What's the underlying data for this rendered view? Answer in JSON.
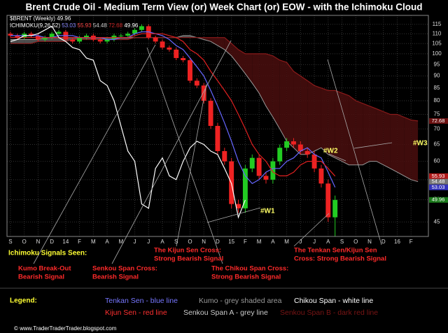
{
  "chart_data": {
    "type": "candlestick",
    "title": "Brent Crude Oil - Medium Term View (or) Week Chart (or) EOW - with the Ichimoku Cloud",
    "symbol_label": "$BRENT (Weekly)",
    "last_price": 49.96,
    "indicator_label": "ICHIMOKU(9,26,52)",
    "indicator_values": [
      53.03,
      55.93,
      54.48,
      72.68,
      49.96
    ],
    "log_scale": true,
    "grid": true,
    "ylim": [
      42,
      120
    ],
    "yticks": [
      45,
      50,
      55,
      60,
      65,
      70,
      75,
      80,
      85,
      90,
      95,
      100,
      105,
      110,
      115
    ],
    "categories": [
      "S",
      null,
      "O",
      null,
      "N",
      null,
      "D",
      null,
      "14",
      null,
      "F",
      null,
      "M",
      null,
      "A",
      null,
      "M",
      null,
      "J",
      null,
      "J",
      null,
      "A",
      null,
      "S",
      null,
      "O",
      null,
      "N",
      null,
      "D",
      null,
      "15",
      null,
      "F",
      null,
      "M",
      null,
      "A",
      null,
      "M",
      null,
      "J",
      null,
      "J",
      null,
      "A",
      null,
      "S",
      null,
      "O",
      null,
      "N",
      null,
      "D",
      null,
      "16",
      null,
      "F",
      null
    ],
    "up_color": "#22cc22",
    "down_color": "#ee2222",
    "open": [
      110,
      109,
      108,
      110,
      109,
      107,
      108,
      110,
      111,
      107,
      106,
      108,
      109,
      107,
      106,
      107,
      109,
      109,
      110,
      112,
      114,
      108,
      106,
      103,
      102,
      98,
      97,
      88,
      86,
      80,
      71,
      63,
      60,
      49,
      48,
      58,
      61,
      56,
      55,
      60,
      64,
      66,
      65,
      63,
      62,
      58,
      54,
      46,
      null,
      null,
      null,
      null,
      null,
      null,
      null,
      null,
      null,
      null,
      null,
      null
    ],
    "high": [
      111,
      110,
      111,
      111,
      110,
      109,
      111,
      112,
      112,
      108,
      109,
      110,
      110,
      108,
      108,
      110,
      110,
      111,
      113,
      115,
      115,
      109,
      107,
      104,
      103,
      99,
      98,
      89,
      87,
      81,
      72,
      64,
      61,
      50,
      59,
      62,
      62,
      57,
      61,
      65,
      67,
      67,
      66,
      64,
      63,
      59,
      55,
      51,
      null,
      null,
      null,
      null,
      null,
      null,
      null,
      null,
      null,
      null,
      null,
      null
    ],
    "low": [
      108,
      107,
      107,
      108,
      106,
      106,
      107,
      109,
      106,
      105,
      105,
      107,
      106,
      105,
      105,
      106,
      108,
      108,
      109,
      111,
      107,
      105,
      102,
      101,
      97,
      96,
      87,
      85,
      79,
      70,
      62,
      59,
      48,
      47,
      47,
      57,
      55,
      54,
      54,
      59,
      63,
      64,
      62,
      61,
      57,
      53,
      45,
      42,
      null,
      null,
      null,
      null,
      null,
      null,
      null,
      null,
      null,
      null,
      null,
      null
    ],
    "close": [
      109,
      108,
      110,
      109,
      107,
      108,
      110,
      111,
      107,
      106,
      108,
      109,
      107,
      106,
      107,
      109,
      109,
      110,
      112,
      114,
      108,
      106,
      103,
      102,
      98,
      97,
      88,
      86,
      80,
      71,
      63,
      60,
      49,
      48,
      58,
      61,
      56,
      55,
      60,
      64,
      66,
      65,
      63,
      62,
      58,
      54,
      46,
      49.96,
      null,
      null,
      null,
      null,
      null,
      null,
      null,
      null,
      null,
      null,
      null,
      null
    ],
    "cloud": {
      "fill_a": "#5a5a5a",
      "fill_b": "#4a0e0e",
      "span_a": {
        "color": "#9a9a9a",
        "values": [
          107,
          107,
          107,
          107,
          107,
          108,
          108,
          108,
          108,
          108,
          108,
          108,
          108,
          108,
          108,
          108,
          108,
          108,
          108,
          108,
          108,
          108,
          108,
          108,
          108,
          109,
          109,
          108,
          107,
          106,
          104,
          102,
          99,
          95,
          91,
          87,
          83,
          78,
          74,
          70,
          66,
          64,
          62,
          62,
          63,
          64,
          62,
          61,
          60,
          59,
          59,
          59,
          60,
          60,
          59,
          58,
          57,
          56,
          55,
          54.48
        ]
      },
      "span_b": {
        "color": "#8b1a1a",
        "values": [
          105,
          105,
          105,
          105,
          106,
          106,
          106,
          106,
          106,
          107,
          107,
          107,
          107,
          107,
          107,
          107,
          107,
          107,
          108,
          108,
          108,
          108,
          108,
          108,
          108,
          108,
          108,
          108,
          108,
          108,
          108,
          108,
          105,
          102,
          100,
          100,
          100,
          100,
          99,
          97,
          96,
          92,
          90,
          88,
          86,
          85,
          84,
          84,
          83,
          82,
          80,
          79,
          78,
          77,
          76,
          75,
          75,
          74,
          73,
          72.68
        ]
      }
    },
    "lines": [
      {
        "color": "#6666ff",
        "values": [
          109,
          109,
          109,
          109,
          109,
          108,
          108,
          109,
          109,
          109,
          108,
          108,
          108,
          108,
          107,
          107,
          108,
          108,
          110,
          111,
          111,
          110,
          109,
          107,
          104,
          102,
          98,
          94,
          90,
          84,
          78,
          72,
          66,
          60,
          56,
          54,
          55,
          57,
          58,
          58,
          60,
          61,
          63,
          64,
          62,
          61,
          57,
          53.03,
          null,
          null,
          null,
          null,
          null,
          null,
          null,
          null,
          null,
          null,
          null,
          null
        ]
      },
      {
        "color": "#e02020",
        "values": [
          108,
          108,
          108,
          108,
          108,
          108,
          108,
          108,
          108,
          108,
          108,
          108,
          108,
          108,
          108,
          108,
          108,
          108,
          109,
          110,
          110,
          110,
          110,
          109,
          108,
          106,
          102,
          100,
          97,
          92,
          88,
          84,
          80,
          75,
          70,
          65,
          62,
          60,
          57,
          56,
          56,
          57,
          59,
          60,
          60,
          60,
          58,
          55.93,
          null,
          null,
          null,
          null,
          null,
          null,
          null,
          null,
          null,
          null,
          null,
          null
        ]
      },
      {
        "color": "#ffffff",
        "values": [
          106,
          107,
          109,
          109,
          110,
          112,
          114,
          108,
          106,
          103,
          102,
          98,
          97,
          88,
          86,
          80,
          71,
          63,
          60,
          49,
          48,
          58,
          61,
          56,
          55,
          60,
          64,
          66,
          65,
          63,
          62,
          58,
          54,
          46,
          49.96,
          null,
          null,
          null,
          null,
          null,
          null,
          null,
          null,
          null,
          null,
          null,
          null,
          null,
          null,
          null,
          null,
          null,
          null,
          null,
          null,
          null,
          null,
          null,
          null,
          null
        ]
      }
    ],
    "price_tags": [
      {
        "value": 72.68,
        "color": "#6b1010"
      },
      {
        "value": 55.93,
        "color": "#b01818"
      },
      {
        "value": 54.48,
        "color": "#777777"
      },
      {
        "value": 53.03,
        "color": "#3333bb"
      },
      {
        "value": 49.96,
        "color": "#1a7a1a"
      }
    ],
    "wave_labels": [
      "#W1",
      "#W2",
      "#W3"
    ],
    "signals_heading": "Ichimoku Signals Seen:",
    "signals": [
      [
        "Kumo Break-Out",
        "Bearish Signal"
      ],
      [
        "Senkou Span Cross:",
        "Bearish Signal"
      ],
      [
        "The Kijun Sen Cross:",
        "Strong Bearish Signal"
      ],
      [
        "The Chikou Span Cross:",
        "Strong Bearish Signal"
      ],
      [
        "The Tenkan Sen/Kijun Sen",
        "Cross: Strong Bearish Signal"
      ]
    ],
    "legend_heading": "Legend:",
    "legend": [
      "Tenkan Sen - blue line",
      "Kumo - grey shaded area",
      "Chikou Span - white line",
      "Kijun Sen - red line",
      "Senkou Span A - grey line",
      "Senkou Span B - dark red line"
    ],
    "footer": "© www.TraderTraderTrader.blogspot.com"
  }
}
